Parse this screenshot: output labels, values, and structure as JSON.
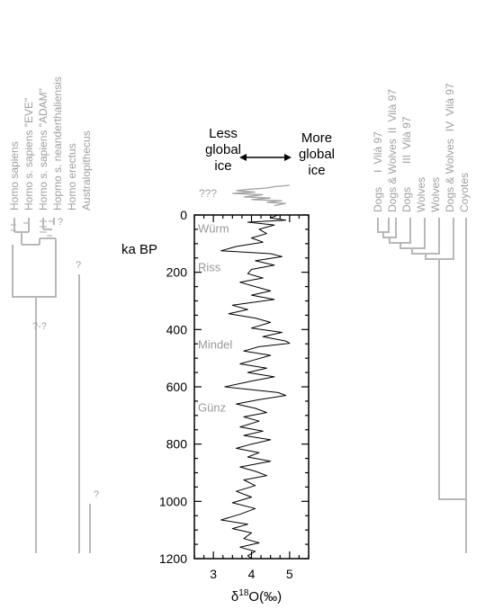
{
  "colors": {
    "ink": "#000000",
    "gray": "#a0a0a0",
    "tree": "#b8b8b8"
  },
  "left_taxa": [
    "Homo sapiens",
    "Homo s. sapiens \"EVE\"",
    "Homo s. sapiens \"ADAM\"",
    "Hopmo s. neanderthaliensis",
    "Homo erectus",
    "Australopithecus"
  ],
  "right_taxa": [
    {
      "name": "Dogs",
      "roman": "I",
      "ref": "Vilà 97"
    },
    {
      "name": "Dogs & Wolves",
      "roman": "II",
      "ref": "Vilà 97"
    },
    {
      "name": "Dogs",
      "roman": "III",
      "ref": "Vilà 97"
    },
    {
      "name": "Wolves",
      "roman": "",
      "ref": ""
    },
    {
      "name": "Wolves",
      "roman": "",
      "ref": ""
    },
    {
      "name": "Dogs & Wolves",
      "roman": "IV",
      "ref": "Vilà 97"
    },
    {
      "name": "Coyotes",
      "roman": "",
      "ref": ""
    }
  ],
  "question_marks": {
    "short": "?",
    "double": "?-?",
    "triple": "???"
  },
  "header": {
    "less_line1": "Less",
    "less_line2": "global",
    "less_line3": "ice",
    "more_line1": "More",
    "more_line2": "global",
    "more_line3": "ice"
  },
  "chart_data": {
    "type": "line",
    "orientation": "vertical",
    "xlabel": "δ18O(‰)",
    "xlabel_base": "δ",
    "xlabel_sup": "18",
    "xlabel_rest": "O(‰)",
    "ylabel": "ka BP",
    "xlim": [
      2.5,
      5.5
    ],
    "ylim": [
      0,
      1200
    ],
    "x_ticks": [
      "3",
      "4",
      "5"
    ],
    "y_ticks": [
      "0",
      "200",
      "400",
      "600",
      "800",
      "1000",
      "1200"
    ],
    "glaciations": [
      {
        "name": "Würm",
        "age": 45
      },
      {
        "name": "Riss",
        "age": 180
      },
      {
        "name": "Mindel",
        "age": 450
      },
      {
        "name": "Günz",
        "age": 670
      }
    ],
    "series": [
      {
        "values": [
          [
            4.7,
            0
          ],
          [
            4.5,
            10
          ],
          [
            4.9,
            18
          ],
          [
            3.9,
            25
          ],
          [
            4.6,
            35
          ],
          [
            4.2,
            50
          ],
          [
            4.4,
            65
          ],
          [
            4.0,
            80
          ],
          [
            4.3,
            95
          ],
          [
            3.6,
            110
          ],
          [
            3.2,
            125
          ],
          [
            4.5,
            135
          ],
          [
            4.8,
            145
          ],
          [
            4.1,
            160
          ],
          [
            4.6,
            175
          ],
          [
            4.0,
            190
          ],
          [
            3.9,
            205
          ],
          [
            4.3,
            220
          ],
          [
            3.7,
            235
          ],
          [
            4.1,
            250
          ],
          [
            4.5,
            265
          ],
          [
            4.0,
            280
          ],
          [
            4.6,
            295
          ],
          [
            3.5,
            315
          ],
          [
            3.9,
            330
          ],
          [
            3.4,
            345
          ],
          [
            4.1,
            360
          ],
          [
            4.5,
            375
          ],
          [
            4.0,
            395
          ],
          [
            4.8,
            410
          ],
          [
            4.3,
            425
          ],
          [
            4.9,
            440
          ],
          [
            5.0,
            448
          ],
          [
            4.2,
            460
          ],
          [
            3.8,
            475
          ],
          [
            4.5,
            490
          ],
          [
            4.1,
            505
          ],
          [
            3.7,
            520
          ],
          [
            4.4,
            535
          ],
          [
            3.9,
            550
          ],
          [
            4.6,
            565
          ],
          [
            4.0,
            580
          ],
          [
            3.3,
            600
          ],
          [
            4.7,
            620
          ],
          [
            4.9,
            630
          ],
          [
            4.2,
            645
          ],
          [
            3.6,
            660
          ],
          [
            4.1,
            675
          ],
          [
            4.4,
            690
          ],
          [
            3.8,
            705
          ],
          [
            4.2,
            720
          ],
          [
            3.7,
            740
          ],
          [
            4.3,
            755
          ],
          [
            3.8,
            770
          ],
          [
            4.5,
            785
          ],
          [
            4.0,
            800
          ],
          [
            3.6,
            815
          ],
          [
            4.2,
            830
          ],
          [
            3.9,
            845
          ],
          [
            4.5,
            860
          ],
          [
            3.7,
            880
          ],
          [
            4.1,
            895
          ],
          [
            4.4,
            910
          ],
          [
            3.8,
            925
          ],
          [
            4.1,
            945
          ],
          [
            3.6,
            965
          ],
          [
            4.0,
            985
          ],
          [
            3.5,
            1005
          ],
          [
            4.1,
            1025
          ],
          [
            3.7,
            1045
          ],
          [
            3.2,
            1065
          ],
          [
            3.9,
            1080
          ],
          [
            3.5,
            1095
          ],
          [
            4.0,
            1110
          ],
          [
            3.8,
            1130
          ],
          [
            4.2,
            1145
          ],
          [
            3.7,
            1160
          ],
          [
            4.1,
            1175
          ],
          [
            3.9,
            1190
          ],
          [
            4.0,
            1200
          ]
        ]
      }
    ],
    "inset_trace": [
      [
        5.0,
        -105
      ],
      [
        4.6,
        -100
      ],
      [
        4.4,
        -95
      ],
      [
        3.9,
        -90
      ],
      [
        3.6,
        -85
      ],
      [
        4.1,
        -80
      ],
      [
        3.5,
        -75
      ],
      [
        4.3,
        -70
      ],
      [
        3.8,
        -62
      ],
      [
        4.5,
        -58
      ],
      [
        4.0,
        -52
      ],
      [
        4.8,
        -48
      ],
      [
        4.4,
        -42
      ],
      [
        4.9,
        -38
      ],
      [
        4.6,
        -30
      ]
    ]
  }
}
